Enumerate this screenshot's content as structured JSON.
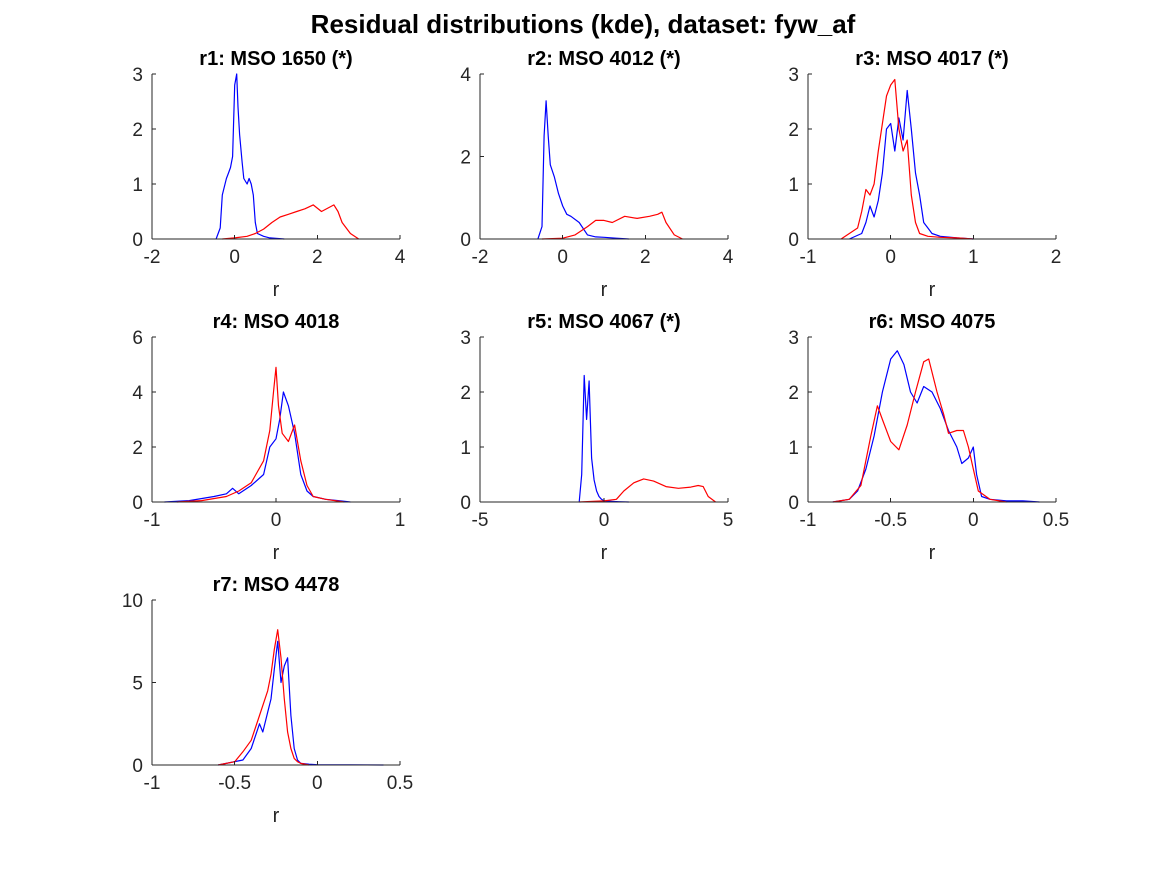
{
  "figure_title": "Residual distributions (kde), dataset: fyw_af",
  "colors": {
    "series_blue": "#0000ff",
    "series_red": "#ff0000",
    "axis": "#262626"
  },
  "chart_data": [
    {
      "type": "line",
      "title": "r1: MSO 1650 (*)",
      "xlabel": "r",
      "ylabel": "",
      "xlim": [
        -2,
        4
      ],
      "ylim": [
        0,
        3
      ],
      "xticks": [
        -2,
        0,
        2,
        4
      ],
      "xtick_labels": [
        "-2",
        "0",
        "2",
        "4"
      ],
      "yticks": [
        0,
        1,
        2,
        3
      ],
      "ytick_labels": [
        "0",
        "1",
        "2",
        "3"
      ],
      "grid": false,
      "series": [
        {
          "color": "#0000ff",
          "x": [
            -0.45,
            -0.35,
            -0.3,
            -0.2,
            -0.15,
            -0.1,
            -0.05,
            0,
            0.05,
            0.08,
            0.12,
            0.18,
            0.22,
            0.3,
            0.35,
            0.4,
            0.45,
            0.5,
            0.55,
            0.7,
            0.85,
            1.0,
            1.2
          ],
          "y": [
            0,
            0.2,
            0.8,
            1.1,
            1.2,
            1.3,
            1.5,
            2.8,
            3.0,
            2.4,
            1.9,
            1.4,
            1.1,
            1.0,
            1.1,
            1.0,
            0.8,
            0.3,
            0.1,
            0.05,
            0.02,
            0.01,
            0
          ]
        },
        {
          "color": "#ff0000",
          "x": [
            -0.3,
            0,
            0.3,
            0.5,
            0.7,
            0.9,
            1.1,
            1.3,
            1.5,
            1.7,
            1.9,
            2.1,
            2.3,
            2.4,
            2.5,
            2.6,
            2.8,
            3.0
          ],
          "y": [
            0,
            0.02,
            0.05,
            0.1,
            0.18,
            0.3,
            0.4,
            0.45,
            0.5,
            0.55,
            0.62,
            0.5,
            0.58,
            0.62,
            0.5,
            0.3,
            0.1,
            0
          ]
        }
      ]
    },
    {
      "type": "line",
      "title": "r2: MSO 4012 (*)",
      "xlabel": "r",
      "ylabel": "",
      "xlim": [
        -2,
        4
      ],
      "ylim": [
        0,
        4
      ],
      "xticks": [
        -2,
        0,
        2,
        4
      ],
      "xtick_labels": [
        "-2",
        "0",
        "2",
        "4"
      ],
      "yticks": [
        0,
        2,
        4
      ],
      "ytick_labels": [
        "0",
        "2",
        "4"
      ],
      "grid": false,
      "series": [
        {
          "color": "#0000ff",
          "x": [
            -0.6,
            -0.5,
            -0.45,
            -0.4,
            -0.35,
            -0.3,
            -0.2,
            -0.1,
            0,
            0.1,
            0.2,
            0.4,
            0.6,
            0.8,
            1.0,
            1.3,
            1.6
          ],
          "y": [
            0,
            0.3,
            2.5,
            3.35,
            2.5,
            1.8,
            1.5,
            1.1,
            0.8,
            0.6,
            0.55,
            0.4,
            0.1,
            0.05,
            0.04,
            0.02,
            0
          ]
        },
        {
          "color": "#ff0000",
          "x": [
            -0.5,
            0,
            0.3,
            0.6,
            0.8,
            1.0,
            1.2,
            1.5,
            1.8,
            2.1,
            2.3,
            2.4,
            2.5,
            2.7,
            2.9
          ],
          "y": [
            0,
            0.02,
            0.1,
            0.3,
            0.45,
            0.45,
            0.4,
            0.55,
            0.5,
            0.55,
            0.6,
            0.65,
            0.4,
            0.1,
            0
          ]
        }
      ]
    },
    {
      "type": "line",
      "title": "r3: MSO 4017 (*)",
      "xlabel": "r",
      "ylabel": "",
      "xlim": [
        -1,
        2
      ],
      "ylim": [
        0,
        3
      ],
      "xticks": [
        -1,
        0,
        1,
        2
      ],
      "xtick_labels": [
        "-1",
        "0",
        "1",
        "2"
      ],
      "yticks": [
        0,
        1,
        2,
        3
      ],
      "ytick_labels": [
        "0",
        "1",
        "2",
        "3"
      ],
      "grid": false,
      "series": [
        {
          "color": "#0000ff",
          "x": [
            -0.5,
            -0.35,
            -0.3,
            -0.25,
            -0.2,
            -0.15,
            -0.1,
            -0.05,
            0,
            0.05,
            0.1,
            0.15,
            0.2,
            0.25,
            0.3,
            0.35,
            0.4,
            0.45,
            0.5,
            0.6,
            0.8,
            1.0
          ],
          "y": [
            0,
            0.1,
            0.3,
            0.6,
            0.4,
            0.7,
            1.2,
            2.0,
            2.1,
            1.6,
            2.2,
            1.8,
            2.7,
            2.0,
            1.2,
            0.8,
            0.3,
            0.2,
            0.1,
            0.05,
            0.02,
            0
          ]
        },
        {
          "color": "#ff0000",
          "x": [
            -0.6,
            -0.4,
            -0.35,
            -0.3,
            -0.25,
            -0.2,
            -0.15,
            -0.1,
            -0.05,
            0,
            0.05,
            0.1,
            0.15,
            0.2,
            0.25,
            0.3,
            0.35,
            0.45,
            0.6,
            0.8,
            1.0
          ],
          "y": [
            0,
            0.2,
            0.5,
            0.9,
            0.8,
            1.0,
            1.6,
            2.1,
            2.6,
            2.8,
            2.9,
            2.0,
            1.6,
            1.8,
            0.8,
            0.3,
            0.1,
            0.05,
            0.03,
            0.02,
            0
          ]
        }
      ]
    },
    {
      "type": "line",
      "title": "r4: MSO 4018",
      "xlabel": "r",
      "ylabel": "",
      "xlim": [
        -1,
        1
      ],
      "ylim": [
        0,
        6
      ],
      "xticks": [
        -1,
        0,
        1
      ],
      "xtick_labels": [
        "-1",
        "0",
        "1"
      ],
      "yticks": [
        0,
        2,
        4,
        6
      ],
      "ytick_labels": [
        "0",
        "2",
        "4",
        "6"
      ],
      "grid": false,
      "series": [
        {
          "color": "#0000ff",
          "x": [
            -0.9,
            -0.7,
            -0.5,
            -0.4,
            -0.35,
            -0.3,
            -0.2,
            -0.1,
            -0.05,
            0,
            0.03,
            0.06,
            0.1,
            0.15,
            0.2,
            0.25,
            0.3,
            0.4,
            0.5,
            0.6
          ],
          "y": [
            0,
            0.05,
            0.2,
            0.3,
            0.5,
            0.3,
            0.6,
            1.0,
            2.0,
            2.3,
            3.0,
            4.0,
            3.5,
            2.5,
            1.0,
            0.4,
            0.2,
            0.1,
            0.05,
            0
          ]
        },
        {
          "color": "#ff0000",
          "x": [
            -0.8,
            -0.6,
            -0.4,
            -0.3,
            -0.2,
            -0.1,
            -0.05,
            -0.02,
            0,
            0.02,
            0.05,
            0.1,
            0.15,
            0.2,
            0.25,
            0.3,
            0.4,
            0.55
          ],
          "y": [
            0,
            0.05,
            0.2,
            0.4,
            0.7,
            1.5,
            2.6,
            4.0,
            4.9,
            3.5,
            2.5,
            2.2,
            2.8,
            1.5,
            0.6,
            0.2,
            0.1,
            0
          ]
        }
      ]
    },
    {
      "type": "line",
      "title": "r5: MSO 4067 (*)",
      "xlabel": "r",
      "ylabel": "",
      "xlim": [
        -5,
        5
      ],
      "ylim": [
        0,
        3
      ],
      "xticks": [
        -5,
        0,
        5
      ],
      "xtick_labels": [
        "-5",
        "0",
        "5"
      ],
      "yticks": [
        0,
        1,
        2,
        3
      ],
      "ytick_labels": [
        "0",
        "1",
        "2",
        "3"
      ],
      "grid": false,
      "series": [
        {
          "color": "#0000ff",
          "x": [
            -1.0,
            -0.9,
            -0.8,
            -0.7,
            -0.6,
            -0.5,
            -0.4,
            -0.3,
            -0.2,
            -0.1,
            0,
            0.3,
            0.6,
            1.0
          ],
          "y": [
            0,
            0.5,
            2.3,
            1.5,
            2.2,
            0.8,
            0.4,
            0.2,
            0.1,
            0.05,
            0.02,
            0.01,
            0.005,
            0
          ]
        },
        {
          "color": "#ff0000",
          "x": [
            -1,
            0,
            0.5,
            0.8,
            1.2,
            1.6,
            2.0,
            2.5,
            3.0,
            3.5,
            3.8,
            4.0,
            4.2,
            4.5
          ],
          "y": [
            0,
            0.02,
            0.05,
            0.2,
            0.35,
            0.42,
            0.38,
            0.28,
            0.25,
            0.27,
            0.3,
            0.28,
            0.1,
            0
          ]
        }
      ]
    },
    {
      "type": "line",
      "title": "r6: MSO 4075",
      "xlabel": "r",
      "ylabel": "",
      "xlim": [
        -1,
        0.5
      ],
      "ylim": [
        0,
        3
      ],
      "xticks": [
        -1,
        -0.5,
        0,
        0.5
      ],
      "xtick_labels": [
        "-1",
        "-0.5",
        "0",
        "0.5"
      ],
      "yticks": [
        0,
        1,
        2,
        3
      ],
      "ytick_labels": [
        "0",
        "1",
        "2",
        "3"
      ],
      "grid": false,
      "series": [
        {
          "color": "#0000ff",
          "x": [
            -0.85,
            -0.75,
            -0.7,
            -0.65,
            -0.6,
            -0.55,
            -0.5,
            -0.46,
            -0.42,
            -0.38,
            -0.34,
            -0.3,
            -0.25,
            -0.2,
            -0.15,
            -0.1,
            -0.07,
            -0.03,
            0,
            0.02,
            0.05,
            0.1,
            0.2,
            0.3,
            0.4
          ],
          "y": [
            0,
            0.05,
            0.2,
            0.6,
            1.2,
            2.0,
            2.6,
            2.75,
            2.5,
            2.0,
            1.8,
            2.1,
            2.0,
            1.7,
            1.3,
            1.0,
            0.7,
            0.8,
            1.0,
            0.5,
            0.1,
            0.05,
            0.02,
            0.02,
            0
          ]
        },
        {
          "color": "#ff0000",
          "x": [
            -0.85,
            -0.75,
            -0.68,
            -0.62,
            -0.58,
            -0.55,
            -0.5,
            -0.45,
            -0.4,
            -0.35,
            -0.3,
            -0.27,
            -0.22,
            -0.18,
            -0.15,
            -0.1,
            -0.06,
            -0.03,
            0,
            0.03,
            0.1,
            0.2
          ],
          "y": [
            0,
            0.05,
            0.3,
            1.2,
            1.75,
            1.5,
            1.1,
            0.95,
            1.4,
            2.0,
            2.55,
            2.6,
            2.0,
            1.6,
            1.25,
            1.3,
            1.3,
            1.0,
            0.6,
            0.2,
            0.05,
            0
          ]
        }
      ]
    },
    {
      "type": "line",
      "title": "r7: MSO 4478",
      "xlabel": "r",
      "ylabel": "",
      "xlim": [
        -1,
        0.5
      ],
      "ylim": [
        0,
        10
      ],
      "xticks": [
        -1,
        -0.5,
        0,
        0.5
      ],
      "xtick_labels": [
        "-1",
        "-0.5",
        "0",
        "0.5"
      ],
      "yticks": [
        0,
        5,
        10
      ],
      "ytick_labels": [
        "0",
        "5",
        "10"
      ],
      "grid": false,
      "series": [
        {
          "color": "#0000ff",
          "x": [
            -0.6,
            -0.45,
            -0.4,
            -0.35,
            -0.33,
            -0.3,
            -0.28,
            -0.26,
            -0.24,
            -0.22,
            -0.2,
            -0.18,
            -0.16,
            -0.14,
            -0.12,
            -0.1,
            -0.05,
            0,
            0.2,
            0.4
          ],
          "y": [
            0,
            0.3,
            1.0,
            2.5,
            2.0,
            3.2,
            4.0,
            5.8,
            7.5,
            5.0,
            6.0,
            6.5,
            3.0,
            1.0,
            0.3,
            0.1,
            0.05,
            0.02,
            0.01,
            0
          ]
        },
        {
          "color": "#ff0000",
          "x": [
            -0.6,
            -0.5,
            -0.45,
            -0.4,
            -0.35,
            -0.3,
            -0.28,
            -0.26,
            -0.24,
            -0.22,
            -0.2,
            -0.18,
            -0.16,
            -0.14,
            -0.12,
            -0.1,
            -0.05
          ],
          "y": [
            0,
            0.2,
            0.8,
            1.5,
            3.0,
            4.5,
            5.5,
            7.0,
            8.2,
            6.5,
            4.0,
            2.0,
            1.0,
            0.4,
            0.2,
            0.1,
            0
          ]
        }
      ]
    }
  ]
}
